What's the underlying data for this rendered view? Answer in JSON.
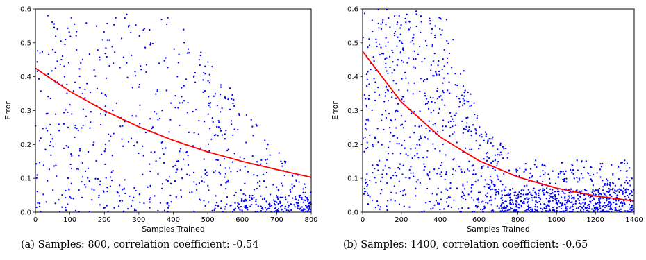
{
  "chart_data": [
    {
      "type": "scatter",
      "caption": "(a) Samples: 800, correlation coefficient: -0.54",
      "xlabel": "Samples Trained",
      "ylabel": "Error",
      "xlim": [
        0,
        800
      ],
      "ylim": [
        0,
        0.6
      ],
      "xticks": [
        "0",
        "100",
        "200",
        "300",
        "400",
        "500",
        "600",
        "700",
        "800"
      ],
      "yticks": [
        "0.0",
        "0.1",
        "0.2",
        "0.3",
        "0.4",
        "0.5",
        "0.6"
      ],
      "grid": false,
      "point_color": "#0000ff",
      "fit_color": "#ff0000",
      "n_points": 800,
      "fit_curve": {
        "x": [
          0,
          100,
          200,
          300,
          400,
          500,
          600,
          700,
          800
        ],
        "y": [
          0.425,
          0.357,
          0.3,
          0.252,
          0.212,
          0.178,
          0.15,
          0.126,
          0.103
        ]
      },
      "point_distribution": [
        {
          "x_range": [
            0,
            200
          ],
          "error_range": [
            0.0,
            0.59
          ]
        },
        {
          "x_range": [
            200,
            400
          ],
          "error_range": [
            0.0,
            0.59
          ]
        },
        {
          "x_range": [
            400,
            600
          ],
          "error_range": [
            0.0,
            0.46
          ]
        },
        {
          "x_range": [
            600,
            800
          ],
          "error_range": [
            0.0,
            0.27
          ],
          "note": "dense below 0.05"
        }
      ]
    },
    {
      "type": "scatter",
      "caption": "(b) Samples: 1400, correlation coefficient: -0.65",
      "xlabel": "Samples Trained",
      "ylabel": "Error",
      "xlim": [
        0,
        1400
      ],
      "ylim": [
        0,
        0.6
      ],
      "xticks": [
        "0",
        "200",
        "400",
        "600",
        "800",
        "1000",
        "1200",
        "1400"
      ],
      "yticks": [
        "0.0",
        "0.1",
        "0.2",
        "0.3",
        "0.4",
        "0.5",
        "0.6"
      ],
      "grid": false,
      "point_color": "#0000ff",
      "fit_color": "#ff0000",
      "n_points": 1400,
      "fit_curve": {
        "x": [
          0,
          200,
          400,
          600,
          800,
          1000,
          1200,
          1400
        ],
        "y": [
          0.475,
          0.325,
          0.222,
          0.152,
          0.104,
          0.071,
          0.048,
          0.033
        ]
      },
      "point_distribution": [
        {
          "x_range": [
            0,
            400
          ],
          "error_range": [
            0.0,
            0.6
          ]
        },
        {
          "x_range": [
            400,
            600
          ],
          "error_range": [
            0.0,
            0.45
          ]
        },
        {
          "x_range": [
            600,
            800
          ],
          "error_range": [
            0.0,
            0.22
          ]
        },
        {
          "x_range": [
            800,
            1400
          ],
          "error_range": [
            0.0,
            0.15
          ],
          "note": "dense below 0.06"
        }
      ]
    }
  ]
}
